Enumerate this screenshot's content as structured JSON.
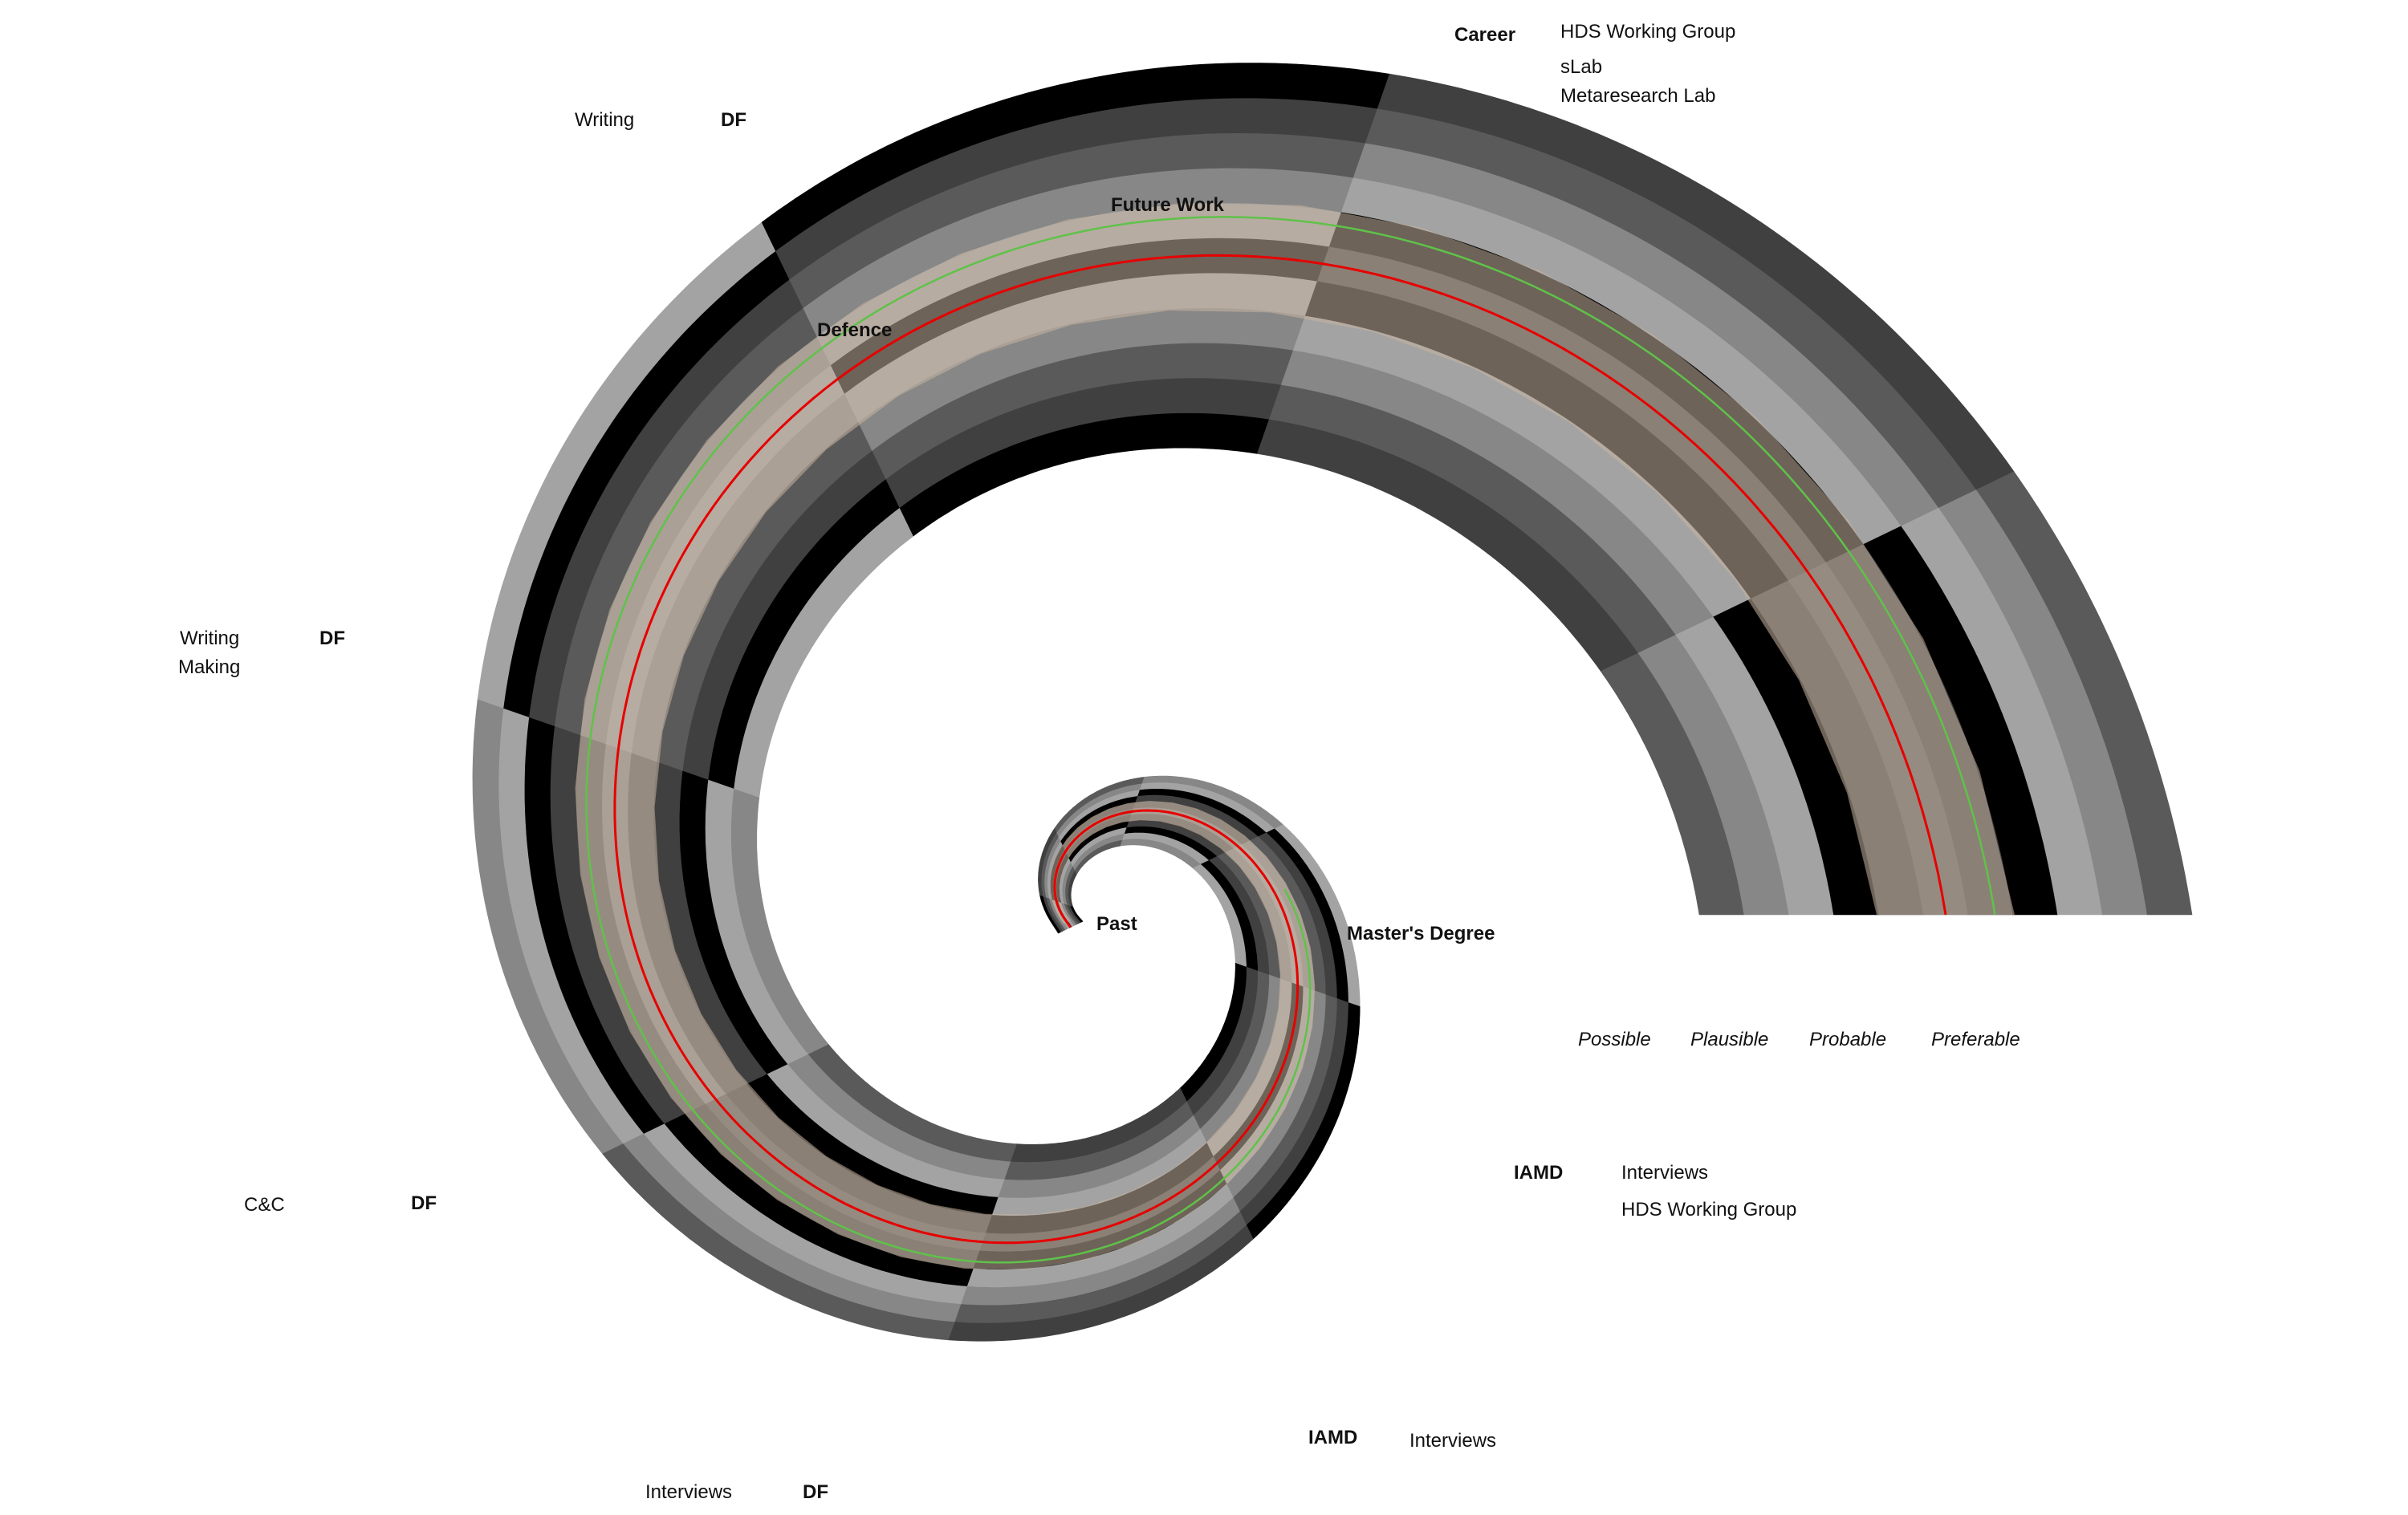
{
  "colors": {
    "background": "#ffffff",
    "bands_cycle": [
      "#000000",
      "#404040",
      "#5a5a5a",
      "#878787",
      "#a3a3a3"
    ],
    "preferable_tint": "#c8b4a0",
    "probable_line": "#e60000",
    "preferable_line": "#5fc24a"
  },
  "center_label": "Past",
  "milestones": {
    "masters": "Master's Degree",
    "defence": "Defence",
    "future_work": "Future Work"
  },
  "cone_legend": [
    "Possible",
    "Plausible",
    "Probable",
    "Preferable"
  ],
  "annotations": {
    "career": {
      "title": "Career",
      "items": [
        "HDS Working Group",
        "sLab",
        "Metaresearch Lab"
      ]
    },
    "df_top": {
      "activity": "Writing",
      "tag": "DF"
    },
    "df_left": {
      "activities": [
        "Writing",
        "Making"
      ],
      "tag": "DF"
    },
    "df_cc": {
      "activity": "C&C",
      "tag": "DF"
    },
    "df_interviews": {
      "activity": "Interviews",
      "tag": "DF"
    },
    "iamd_right": {
      "tag": "IAMD",
      "items": [
        "Interviews",
        "HDS Working Group"
      ]
    },
    "iamd_bottom": {
      "tag": "IAMD",
      "items": [
        "Interviews"
      ]
    }
  }
}
